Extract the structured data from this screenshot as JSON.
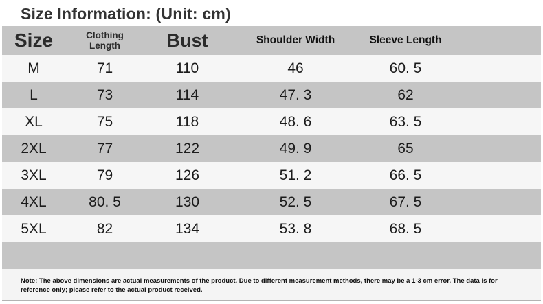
{
  "title": "Size Information: (Unit: cm)",
  "unit": "cm",
  "colors": {
    "header_bg": "#c5c5c5",
    "row_gray_bg": "#c5c5c5",
    "row_light_bg": "#f6f6f6",
    "note_bg": "#f4f4f4",
    "divider": "#b3b3b3",
    "text": "#1c1c1c",
    "title_text": "#333333"
  },
  "table": {
    "columns": [
      {
        "key": "size",
        "label": "Size"
      },
      {
        "key": "clothing-length",
        "label": "Clothing Length",
        "label_lines": [
          "Clothing",
          "Length"
        ]
      },
      {
        "key": "bust",
        "label": "Bust"
      },
      {
        "key": "shoulder-width",
        "label": "Shoulder Width"
      },
      {
        "key": "sleeve-length",
        "label": "Sleeve Length"
      }
    ],
    "rows": [
      [
        "M",
        "71",
        "110",
        "46",
        "60. 5"
      ],
      [
        "L",
        "73",
        "114",
        "47. 3",
        "62"
      ],
      [
        "XL",
        "75",
        "118",
        "48. 6",
        "63. 5"
      ],
      [
        "2XL",
        "77",
        "122",
        "49. 9",
        "65"
      ],
      [
        "3XL",
        "79",
        "126",
        "51. 2",
        "66. 5"
      ],
      [
        "4XL",
        "80. 5",
        "130",
        "52. 5",
        "67. 5"
      ],
      [
        "5XL",
        "82",
        "134",
        "53. 8",
        "68. 5"
      ]
    ]
  },
  "note": "Note: The above dimensions are actual measurements of the product. Due to different measurement methods, there may be a 1-3 cm error. The data is for reference only; please refer to the actual product received.",
  "chart_data": {
    "type": "table",
    "title": "Size Information: (Unit: cm)",
    "unit": "cm",
    "columns": [
      "Size",
      "Clothing Length",
      "Bust",
      "Shoulder Width",
      "Sleeve Length"
    ],
    "rows": [
      [
        "M",
        71,
        110,
        46,
        60.5
      ],
      [
        "L",
        73,
        114,
        47.3,
        62
      ],
      [
        "XL",
        75,
        118,
        48.6,
        63.5
      ],
      [
        "2XL",
        77,
        122,
        49.9,
        65
      ],
      [
        "3XL",
        79,
        126,
        51.2,
        66.5
      ],
      [
        "4XL",
        80.5,
        130,
        52.5,
        67.5
      ],
      [
        "5XL",
        82,
        134,
        53.8,
        68.5
      ]
    ]
  }
}
